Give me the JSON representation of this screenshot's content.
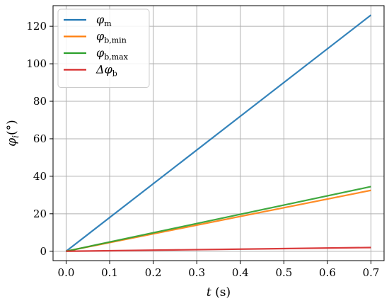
{
  "chart_data": {
    "type": "line",
    "xlabel_var": "t",
    "xlabel_unit": " (s)",
    "ylabel_var": "φ",
    "ylabel_sub": "i",
    "ylabel_unit": "(°)",
    "xlim": [
      -0.03,
      0.73
    ],
    "ylim": [
      -5,
      131
    ],
    "xticks": [
      0.0,
      0.1,
      0.2,
      0.3,
      0.4,
      0.5,
      0.6,
      0.7
    ],
    "xtick_labels": [
      "0.0",
      "0.1",
      "0.2",
      "0.3",
      "0.4",
      "0.5",
      "0.6",
      "0.7"
    ],
    "yticks": [
      0,
      20,
      40,
      60,
      80,
      100,
      120
    ],
    "ytick_labels": [
      "0",
      "20",
      "40",
      "60",
      "80",
      "100",
      "120"
    ],
    "grid": true,
    "legend_position": "top-left",
    "x": [
      0.0,
      0.7
    ],
    "series": [
      {
        "name": "φ",
        "name_sub": "m",
        "color": "#1f77b4",
        "values": [
          0,
          126
        ]
      },
      {
        "name": "φ",
        "name_sub": "b,min",
        "color": "#ff7f0e",
        "values": [
          0,
          32.5
        ]
      },
      {
        "name": "φ",
        "name_sub": "b,max",
        "color": "#2ca02c",
        "values": [
          0,
          34.5
        ]
      },
      {
        "name": "Δφ",
        "name_sub": "b",
        "color": "#d62728",
        "values": [
          0,
          2
        ]
      }
    ]
  }
}
